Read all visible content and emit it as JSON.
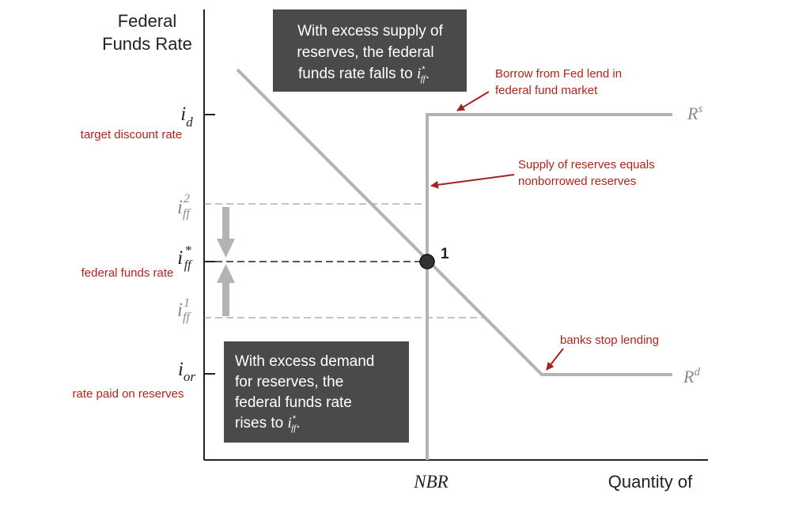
{
  "axes": {
    "y_title_line1": "Federal",
    "y_title_line2": "Funds Rate",
    "x_title": "Quantity of",
    "x_tick_nbr": "NBR"
  },
  "y_ticks": {
    "i_d": {
      "base": "i",
      "sub": "d",
      "note": "target discount rate"
    },
    "i_ff2": {
      "base": "i",
      "sub": "ff",
      "sup": "2"
    },
    "i_ff_star": {
      "base": "i",
      "sub": "ff",
      "sup": "*",
      "note": "federal funds rate"
    },
    "i_ff1": {
      "base": "i",
      "sub": "ff",
      "sup": "1"
    },
    "i_or": {
      "base": "i",
      "sub": "or",
      "note": "rate paid on reserves"
    }
  },
  "curves": {
    "supply_label": {
      "base": "R",
      "sup": "s"
    },
    "demand_label": {
      "base": "R",
      "sup": "d"
    }
  },
  "equilibrium_label": "1",
  "boxes": {
    "excess_supply": {
      "line1": "With excess supply of",
      "line2": "reserves, the federal",
      "line3_pre": "funds rate falls to ",
      "rate_base": "i",
      "rate_sub": "ff",
      "rate_sup": "*",
      "line3_post": "."
    },
    "excess_demand": {
      "line1": "With excess demand",
      "line2": "for reserves, the",
      "line3": "federal funds rate",
      "line4_pre": "rises to ",
      "rate_base": "i",
      "rate_sub": "ff",
      "rate_sup": "*",
      "line4_post": "."
    }
  },
  "annotations": {
    "borrow": {
      "line1": "Borrow from Fed lend in",
      "line2": "federal fund market"
    },
    "supply_equals": {
      "line1": "Supply of reserves equals",
      "line2": "nonborrowed reserves"
    },
    "stop_lending": {
      "line1": "banks stop lending"
    }
  },
  "colors": {
    "annotation_red": "#b0241b",
    "curve_gray": "#b3b3b3",
    "box_bg": "#4a4a4a",
    "axis": "#222222",
    "tick_light_gray": "#8a8a8a"
  }
}
